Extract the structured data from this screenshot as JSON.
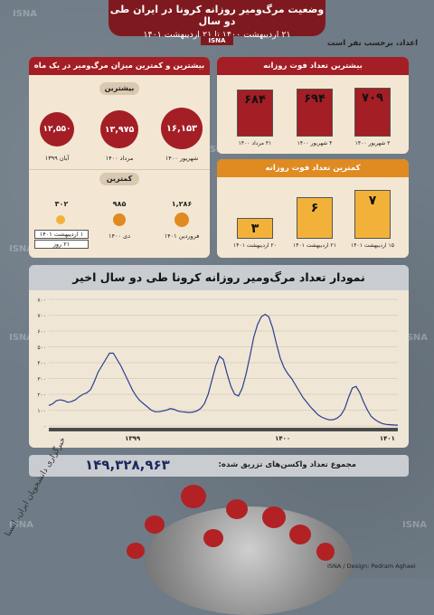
{
  "header": {
    "title": "وضعیت مرگ‌ومیر روزانه کرونا در ایران طی دو سال",
    "subtitle": "۲۱ اردیبهشت ۱۴۰۰ تا ۲۱ اردیبهشت ۱۴۰۱",
    "agency": "ISNA"
  },
  "unit_note": "اعداد، برحسب نفر است",
  "monthly": {
    "title": "بیشترین و کمترین میزان مرگ‌ومیر در یک ماه",
    "max_label": "بیشترین",
    "min_label": "کمترین",
    "max_items": [
      {
        "value": "۱۶,۱۵۳",
        "period": "شهریور ۱۴۰۰"
      },
      {
        "value": "۱۳,۹۷۵",
        "period": "مرداد ۱۴۰۰"
      },
      {
        "value": "۱۲,۵۵۰",
        "period": "آبان ۱۳۹۹"
      }
    ],
    "min_items": [
      {
        "value": "۱,۲۸۶",
        "period": "فروردین ۱۴۰۱"
      },
      {
        "value": "۹۸۵",
        "period": "دی ۱۴۰۰"
      },
      {
        "value": "۳۰۲",
        "period": "۱ اردیبهشت ۱۴۰۱",
        "note": "۲۱ روز"
      }
    ]
  },
  "max_daily": {
    "title": "بیشترین تعداد فوت روزانه",
    "bars": [
      {
        "value": "۷۰۹",
        "label": "۳ شهریور ۱۴۰۰",
        "v": 709
      },
      {
        "value": "۶۹۴",
        "label": "۴ شهریور ۱۴۰۰",
        "v": 694
      },
      {
        "value": "۶۸۴",
        "label": "۳۱ مرداد ۱۴۰۰",
        "v": 684
      }
    ]
  },
  "min_daily": {
    "title": "کمترین تعداد فوت روزانه",
    "bars": [
      {
        "value": "۷",
        "label": "۱۵ اردیبهشت ۱۴۰۱",
        "v": 7
      },
      {
        "value": "۶",
        "label": "۲۱ اردیبهشت ۱۴۰۱",
        "v": 6
      },
      {
        "value": "۳",
        "label": "۲۰ اردیبهشت ۱۴۰۱",
        "v": 3
      }
    ]
  },
  "chart_data": {
    "type": "line",
    "title": "نمودار تعداد مرگ‌ومیر روزانه کرونا طی دو سال اخیر",
    "ylim": [
      0,
      800
    ],
    "yticks": [
      "۰",
      "۱۰۰",
      "۲۰۰",
      "۳۰۰",
      "۴۰۰",
      "۵۰۰",
      "۶۰۰",
      "۷۰۰",
      "۸۰۰"
    ],
    "xticks": [
      "۱۳۹۹",
      "۱۴۰۰",
      "۱۴۰۱"
    ],
    "grid": true,
    "color": "#2b3f8f",
    "series": [
      {
        "values": [
          130,
          140,
          160,
          165,
          160,
          150,
          155,
          165,
          185,
          200,
          210,
          230,
          280,
          340,
          380,
          420,
          460,
          460,
          420,
          380,
          330,
          280,
          230,
          190,
          160,
          140,
          120,
          100,
          90,
          90,
          95,
          100,
          110,
          105,
          95,
          90,
          88,
          85,
          88,
          95,
          110,
          140,
          200,
          290,
          380,
          440,
          420,
          330,
          250,
          200,
          190,
          240,
          330,
          440,
          560,
          640,
          690,
          705,
          690,
          620,
          520,
          430,
          370,
          330,
          300,
          260,
          220,
          180,
          150,
          120,
          95,
          70,
          55,
          45,
          38,
          40,
          50,
          70,
          110,
          180,
          240,
          250,
          210,
          150,
          100,
          60,
          40,
          25,
          15,
          10,
          8,
          6,
          5
        ]
      }
    ]
  },
  "total": {
    "label": "مجموع تعداد واکسن‌های تزریق شده:",
    "value": "۱۴۹,۳۲۸,۹۶۳"
  },
  "footer": {
    "credit": "ISNA / Design: Pedram Aghaei",
    "signature": "خبرگزاری دانشجویان ایران، ایسنا"
  },
  "colors": {
    "dark_red": "#7e1a1f",
    "red": "#a41e25",
    "orange": "#e08a22",
    "yellow": "#f2b23a",
    "cream": "#f3e7d3",
    "line": "#2b3f8f"
  }
}
